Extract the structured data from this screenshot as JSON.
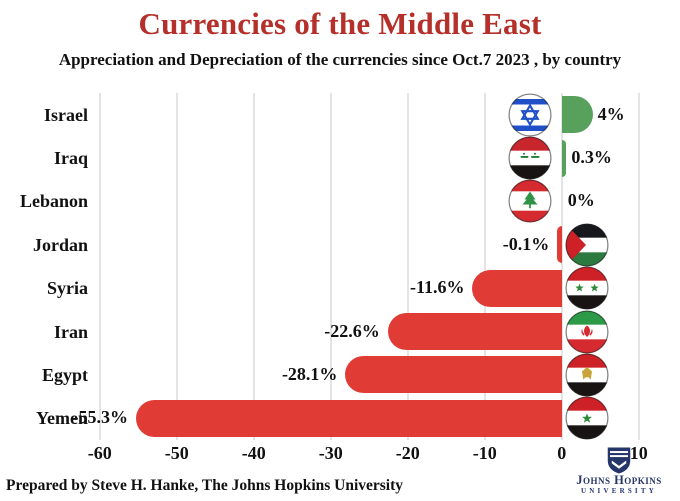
{
  "header": {
    "title": "Currencies of the Middle East",
    "subtitle": "Appreciation and Depreciation of the currencies since Oct.7 2023 , by country"
  },
  "footer": {
    "credit": "Prepared by Steve H. Hanke, The Johns Hopkins University",
    "logo_line1": "Johns Hopkins",
    "logo_line2": "UNIVERSITY"
  },
  "colors": {
    "title_red": "#b5302a",
    "positive_bar": "#58a15c",
    "negative_bar": "#e03c35",
    "gridline": "#e4e4e4",
    "text": "#111111",
    "logo_navy": "#25366b"
  },
  "chart_data": {
    "type": "bar",
    "orientation": "horizontal",
    "title": "Currencies of the Middle East",
    "subtitle": "Appreciation and Depreciation of the currencies since Oct.7 2023 , by country",
    "categories": [
      "Israel",
      "Iraq",
      "Lebanon",
      "Jordan",
      "Syria",
      "Iran",
      "Egypt",
      "Yemen"
    ],
    "values": [
      4,
      0.3,
      0,
      -0.1,
      -11.6,
      -22.6,
      -28.1,
      -55.3
    ],
    "value_labels": [
      "4%",
      "0.3%",
      "0%",
      "-0.1%",
      "-11.6%",
      "-22.6%",
      "-28.1%",
      "-55.3%"
    ],
    "xticks": [
      -60,
      -50,
      -40,
      -30,
      -20,
      -10,
      0,
      10
    ],
    "xtick_labels": [
      "-60",
      "-50",
      "-40",
      "-30",
      "-20",
      "-10",
      "0",
      "10"
    ],
    "xlim": [
      -61,
      11
    ],
    "grid": true,
    "legend": "none",
    "unit": "percent"
  },
  "flags": [
    {
      "country": "Israel",
      "name": "israel-flag-icon",
      "type": "israel",
      "stripes": [
        "#ffffff"
      ],
      "emblem": "star-of-david",
      "emblem_color": "#2050c8"
    },
    {
      "country": "Iraq",
      "name": "iraq-flag-icon",
      "type": "stripes",
      "stripes": [
        "#c8252c",
        "#ffffff",
        "#171413"
      ],
      "emblem": "script",
      "emblem_color": "#1e7d38"
    },
    {
      "country": "Lebanon",
      "name": "lebanon-flag-icon",
      "type": "stripes",
      "stripes": [
        "#d42a30",
        "#ffffff",
        "#d42a30"
      ],
      "stripe_fracs": [
        0.28,
        0.44,
        0.28
      ],
      "emblem": "cedar",
      "emblem_color": "#2f9247"
    },
    {
      "country": "Jordan",
      "name": "jordan-flag-icon",
      "type": "stripes",
      "stripes": [
        "#17181c",
        "#ffffff",
        "#2c7a3f"
      ],
      "emblem": "chevron",
      "emblem_color": "#ce2127"
    },
    {
      "country": "Syria",
      "name": "syria-flag-icon",
      "type": "stripes",
      "stripes": [
        "#ce2127",
        "#ffffff",
        "#171413"
      ],
      "emblem": "stars2",
      "emblem_color": "#2e8b3a"
    },
    {
      "country": "Iran",
      "name": "iran-flag-icon",
      "type": "stripes",
      "stripes": [
        "#2d9a47",
        "#ffffff",
        "#d42a30"
      ],
      "emblem": "tulip",
      "emblem_color": "#d42a30"
    },
    {
      "country": "Egypt",
      "name": "egypt-flag-icon",
      "type": "stripes",
      "stripes": [
        "#ce2127",
        "#ffffff",
        "#171413"
      ],
      "emblem": "eagle",
      "emblem_color": "#c9a43b"
    },
    {
      "country": "Yemen",
      "name": "yemen-flag-icon",
      "type": "stripes",
      "stripes": [
        "#ce2127",
        "#ffffff",
        "#171413"
      ],
      "emblem": "star1",
      "emblem_color": "#2e8b3a"
    }
  ]
}
